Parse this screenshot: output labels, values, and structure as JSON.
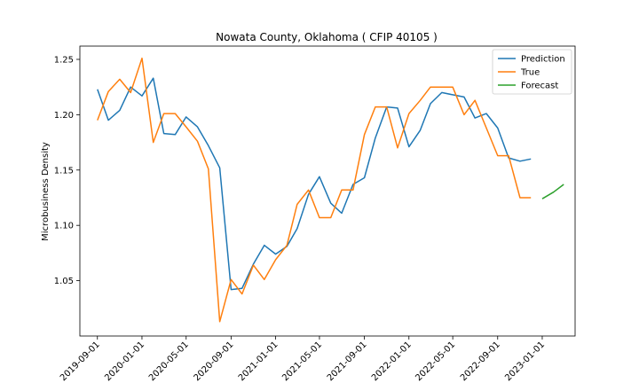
{
  "chart_data": {
    "type": "line",
    "title": "Nowata County, Oklahoma ( CFIP 40105 )",
    "xlabel": "",
    "ylabel": "Microbusiness Density",
    "ylim": [
      1.0,
      1.262
    ],
    "xlim": [
      "2019-07-15",
      "2023-04-01"
    ],
    "yticks": [
      1.05,
      1.1,
      1.15,
      1.2,
      1.25
    ],
    "ytick_labels": [
      "1.05",
      "1.10",
      "1.15",
      "1.20",
      "1.25"
    ],
    "xticks": [
      "2019-09-01",
      "2020-01-01",
      "2020-05-01",
      "2020-09-01",
      "2021-01-01",
      "2021-05-01",
      "2021-09-01",
      "2022-01-01",
      "2022-05-01",
      "2022-09-01",
      "2023-01-01"
    ],
    "xtick_labels": [
      "2019-09-01",
      "2020-01-01",
      "2020-05-01",
      "2020-09-01",
      "2021-01-01",
      "2021-05-01",
      "2021-09-01",
      "2022-01-01",
      "2022-05-01",
      "2022-09-01",
      "2023-01-01"
    ],
    "grid": false,
    "legend_position": "top-right",
    "series": [
      {
        "name": "Prediction",
        "color": "#1f77b4",
        "x": [
          "2019-09-01",
          "2019-10-01",
          "2019-11-01",
          "2019-12-01",
          "2020-01-01",
          "2020-02-01",
          "2020-03-01",
          "2020-04-01",
          "2020-05-01",
          "2020-06-01",
          "2020-07-01",
          "2020-08-01",
          "2020-09-01",
          "2020-10-01",
          "2020-11-01",
          "2020-12-01",
          "2021-01-01",
          "2021-02-01",
          "2021-03-01",
          "2021-04-01",
          "2021-05-01",
          "2021-06-01",
          "2021-07-01",
          "2021-08-01",
          "2021-09-01",
          "2021-10-01",
          "2021-11-01",
          "2021-12-01",
          "2022-01-01",
          "2022-02-01",
          "2022-03-01",
          "2022-04-01",
          "2022-05-01",
          "2022-06-01",
          "2022-07-01",
          "2022-08-01",
          "2022-09-01",
          "2022-10-01",
          "2022-11-01",
          "2022-12-01"
        ],
        "values": [
          1.223,
          1.195,
          1.204,
          1.225,
          1.217,
          1.233,
          1.183,
          1.182,
          1.198,
          1.189,
          1.172,
          1.152,
          1.042,
          1.043,
          1.065,
          1.082,
          1.074,
          1.081,
          1.097,
          1.128,
          1.144,
          1.12,
          1.111,
          1.137,
          1.143,
          1.179,
          1.207,
          1.206,
          1.171,
          1.186,
          1.21,
          1.22,
          1.218,
          1.216,
          1.197,
          1.201,
          1.188,
          1.161,
          1.158,
          1.16
        ]
      },
      {
        "name": "True",
        "color": "#ff7f0e",
        "x": [
          "2019-09-01",
          "2019-10-01",
          "2019-11-01",
          "2019-12-01",
          "2020-01-01",
          "2020-02-01",
          "2020-03-01",
          "2020-04-01",
          "2020-05-01",
          "2020-06-01",
          "2020-07-01",
          "2020-08-01",
          "2020-09-01",
          "2020-10-01",
          "2020-11-01",
          "2020-12-01",
          "2021-01-01",
          "2021-02-01",
          "2021-03-01",
          "2021-04-01",
          "2021-05-01",
          "2021-06-01",
          "2021-07-01",
          "2021-08-01",
          "2021-09-01",
          "2021-10-01",
          "2021-11-01",
          "2021-12-01",
          "2022-01-01",
          "2022-02-01",
          "2022-03-01",
          "2022-04-01",
          "2022-05-01",
          "2022-06-01",
          "2022-07-01",
          "2022-08-01",
          "2022-09-01",
          "2022-10-01",
          "2022-11-01",
          "2022-12-01"
        ],
        "values": [
          1.195,
          1.221,
          1.232,
          1.22,
          1.251,
          1.175,
          1.201,
          1.201,
          1.189,
          1.176,
          1.151,
          1.013,
          1.051,
          1.038,
          1.064,
          1.051,
          1.069,
          1.082,
          1.119,
          1.132,
          1.107,
          1.107,
          1.132,
          1.132,
          1.182,
          1.207,
          1.207,
          1.17,
          1.201,
          1.213,
          1.225,
          1.225,
          1.225,
          1.2,
          1.213,
          1.188,
          1.163,
          1.163,
          1.125,
          1.125
        ]
      },
      {
        "name": "Forecast",
        "color": "#2ca02c",
        "x": [
          "2023-01-01",
          "2023-02-01",
          "2023-03-01"
        ],
        "values": [
          1.124,
          1.13,
          1.137
        ]
      }
    ]
  }
}
